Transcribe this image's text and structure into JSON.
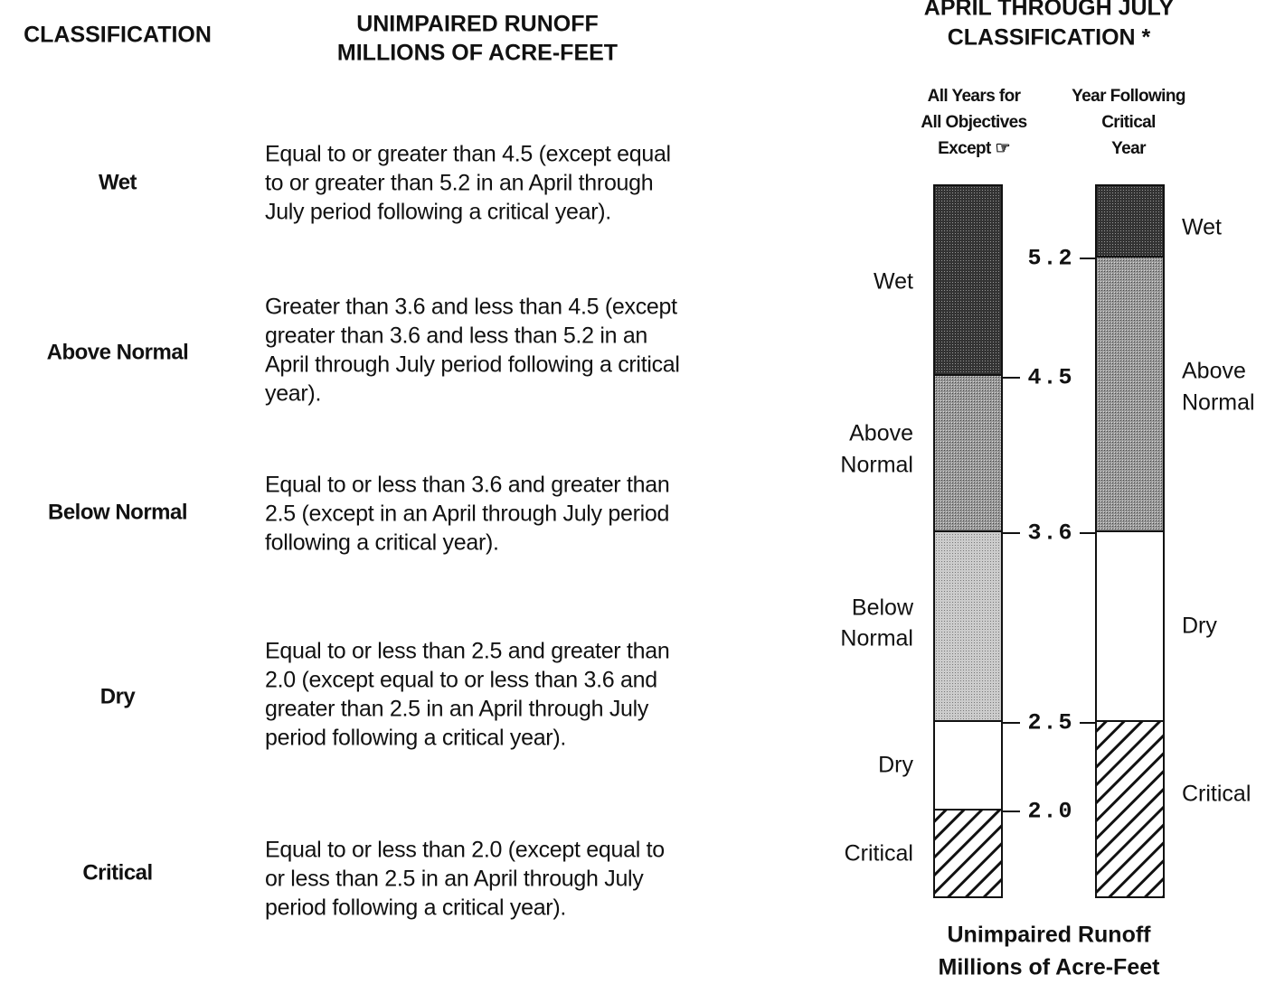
{
  "table": {
    "headers": [
      [
        "CLASSIFICATION"
      ],
      [
        "UNIMPAIRED RUNOFF",
        "MILLIONS OF ACRE-FEET"
      ]
    ],
    "rows": [
      {
        "classification": "Wet",
        "description": [
          "Equal to or greater than 4.5 (except equal",
          "to or greater than 5.2 in an April through",
          "July period following a critical year)."
        ]
      },
      {
        "classification": "Above Normal",
        "description": [
          "Greater than 3.6 and less than 4.5 (except",
          "greater than 3.6 and less than 5.2 in an",
          "April through July period following a critical",
          "year)."
        ]
      },
      {
        "classification": "Below Normal",
        "description": [
          "Equal to or less than 3.6 and greater than",
          "2.5 (except in an April through July period",
          "following a critical year)."
        ]
      },
      {
        "classification": "Dry",
        "description": [
          "Equal to or less than 2.5 and greater than",
          "2.0 (except equal to or less than 3.6 and",
          "greater than 2.5 in an April through July",
          "period following a critical year)."
        ]
      },
      {
        "classification": "Critical",
        "description": [
          "Equal to or less than 2.0 (except equal to",
          "or less than 2.5 in an April through July",
          "period following a critical year)."
        ]
      }
    ]
  },
  "diagram": {
    "title": [
      "APRIL THROUGH JULY",
      "CLASSIFICATION *"
    ],
    "columns": [
      {
        "heading": [
          "All Years for",
          "All Objectives",
          "Except ☞"
        ],
        "segments": [
          {
            "label": [
              "Wet"
            ]
          },
          {
            "label": [
              "Above",
              "Normal"
            ]
          },
          {
            "label": [
              "Below",
              "Normal"
            ]
          },
          {
            "label": [
              "Dry"
            ]
          },
          {
            "label": [
              "Critical"
            ]
          }
        ]
      },
      {
        "heading": [
          "Year Following",
          "Critical",
          "Year"
        ],
        "segments": [
          {
            "label": [
              "Wet"
            ]
          },
          {
            "label": [
              "Above",
              "Normal"
            ]
          },
          {
            "label": [
              "Dry"
            ]
          },
          {
            "label": [
              "Critical"
            ]
          }
        ]
      }
    ],
    "thresholds": [
      "5.2",
      "4.5",
      "3.6",
      "2.5",
      "2.0"
    ],
    "axis_label": [
      "Unimpaired Runoff",
      "Millions of Acre-Feet"
    ]
  }
}
